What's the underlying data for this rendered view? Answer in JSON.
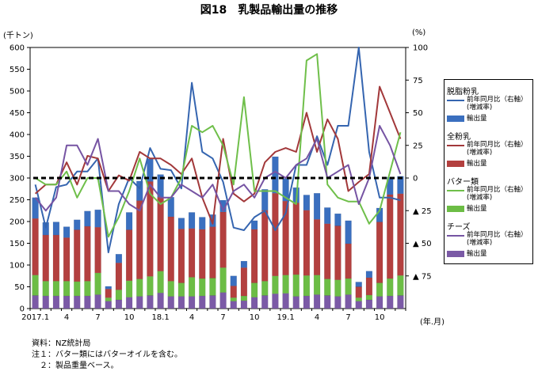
{
  "title": "図18　乳製品輸出量の推移",
  "left_unit": "(千トン)",
  "right_unit": "(%)",
  "x_unit": "(年.月)",
  "notes": [
    "資料：NZ統計局",
    "注１：バター類にはバターオイルを含む。",
    "　２：製品重量ベース。"
  ],
  "legend": {
    "groups": [
      {
        "name": "脱脂粉乳",
        "line_label": "前年同月比（右軸）\n(増減率)",
        "bar_label": "輸出量",
        "line_color": "#3565b0",
        "bar_color": "#3a6fbf"
      },
      {
        "name": "全粉乳",
        "line_label": "前年同月比（右軸）\n(増減率)",
        "bar_label": "輸出量",
        "line_color": "#a2383a",
        "bar_color": "#b3403f"
      },
      {
        "name": "バター類",
        "line_label": "前年同月比（右軸）\n(増減率)",
        "bar_label": "輸出量",
        "line_color": "#6fbf4a",
        "bar_color": "#6cbd45"
      },
      {
        "name": "チーズ",
        "line_label": "前年同月比（右軸）\n(増減率)",
        "bar_label": "輸出量",
        "line_color": "#7654a3",
        "bar_color": "#7b5aa6"
      }
    ]
  },
  "chart_data": {
    "type": "bar",
    "categories": [
      "2017.1",
      "2",
      "3",
      "4",
      "5",
      "6",
      "7",
      "8",
      "9",
      "10",
      "11",
      "12",
      "18.1",
      "2",
      "3",
      "4",
      "5",
      "6",
      "7",
      "8",
      "9",
      "10",
      "11",
      "12",
      "19.1",
      "2",
      "3",
      "4",
      "5",
      "6",
      "7",
      "8",
      "9",
      "10",
      "11",
      "12"
    ],
    "x_tick_labels": [
      "2017.1",
      "",
      "",
      "4",
      "",
      "",
      "7",
      "",
      "",
      "10",
      "",
      "",
      "18.1",
      "",
      "",
      "4",
      "",
      "",
      "7",
      "",
      "",
      "10",
      "",
      "",
      "19.1",
      "",
      "",
      "4",
      "",
      "",
      "7",
      "",
      "",
      "10",
      "",
      ""
    ],
    "ylim_left": [
      0,
      600
    ],
    "yticks_left": [
      "0",
      "50",
      "100",
      "150",
      "200",
      "250",
      "300",
      "350",
      "400",
      "450",
      "500",
      "550",
      "600"
    ],
    "ylim_right": [
      -100,
      100
    ],
    "yticks_right": [
      {
        "value": 100,
        "label": "100"
      },
      {
        "value": 75,
        "label": "75"
      },
      {
        "value": 50,
        "label": "50"
      },
      {
        "value": 25,
        "label": "25"
      },
      {
        "value": 0,
        "label": "0"
      },
      {
        "value": -25,
        "label": "▲ 25"
      },
      {
        "value": -50,
        "label": "▲ 50"
      },
      {
        "value": -75,
        "label": "▲ 75"
      }
    ],
    "bar_series": [
      {
        "name": "チーズ 輸出量",
        "values": [
          30,
          29,
          29,
          29,
          29,
          29,
          32,
          17,
          20,
          26,
          28,
          30,
          36,
          28,
          28,
          28,
          29,
          30,
          37,
          17,
          18,
          26,
          30,
          34,
          35,
          28,
          29,
          32,
          30,
          28,
          32,
          17,
          20,
          28,
          29,
          30
        ]
      },
      {
        "name": "バター類 輸出量",
        "values": [
          47,
          34,
          34,
          34,
          33,
          34,
          50,
          8,
          23,
          38,
          40,
          44,
          50,
          35,
          31,
          44,
          40,
          40,
          57,
          8,
          11,
          33,
          33,
          41,
          42,
          50,
          47,
          45,
          38,
          38,
          37,
          8,
          11,
          31,
          40,
          46
        ]
      },
      {
        "name": "全粉乳 輸出量",
        "values": [
          130,
          106,
          106,
          100,
          119,
          126,
          105,
          20,
          62,
          117,
          180,
          218,
          170,
          148,
          124,
          112,
          113,
          118,
          128,
          27,
          65,
          123,
          163,
          190,
          170,
          165,
          150,
          128,
          127,
          124,
          80,
          25,
          40,
          140,
          193,
          188
        ]
      },
      {
        "name": "脱脂粉乳 輸出量",
        "values": [
          48,
          29,
          30,
          25,
          23,
          35,
          40,
          6,
          20,
          40,
          45,
          52,
          52,
          45,
          25,
          37,
          28,
          28,
          27,
          23,
          15,
          20,
          48,
          84,
          52,
          35,
          35,
          60,
          37,
          28,
          53,
          11,
          15,
          32,
          40,
          40
        ]
      }
    ],
    "line_series": [
      {
        "name": "脱脂粉乳 前年同月比（増減率）",
        "values": [
          -5,
          -38,
          -7,
          -5,
          5,
          5,
          15,
          -57,
          -20,
          0,
          -8,
          23,
          7,
          6,
          -8,
          73,
          20,
          15,
          -3,
          -38,
          -40,
          -30,
          -25,
          -40,
          -27,
          10,
          10,
          32,
          10,
          40,
          40,
          100,
          20,
          -15,
          -15,
          -17
        ]
      },
      {
        "name": "全粉乳 前年同月比（増減率）",
        "values": [
          -12,
          -5,
          -5,
          12,
          -5,
          17,
          15,
          -10,
          2,
          -2,
          20,
          15,
          15,
          10,
          3,
          15,
          -15,
          -35,
          30,
          -12,
          -18,
          -12,
          12,
          20,
          23,
          20,
          50,
          20,
          45,
          30,
          -10,
          -3,
          3,
          70,
          50,
          30
        ]
      },
      {
        "name": "バター類 前年同月比（増減率）",
        "values": [
          0,
          -5,
          -5,
          5,
          -15,
          0,
          0,
          -45,
          -30,
          -10,
          15,
          -12,
          -20,
          -15,
          0,
          40,
          35,
          40,
          25,
          -5,
          62,
          -10,
          -10,
          -10,
          -15,
          -20,
          90,
          95,
          -5,
          -15,
          -18,
          -18,
          -35,
          -25,
          5,
          35
        ]
      },
      {
        "name": "チーズ 前年同月比（増減率）",
        "values": [
          -15,
          -25,
          -15,
          25,
          25,
          10,
          30,
          -10,
          -10,
          -20,
          -25,
          -5,
          -15,
          -15,
          -5,
          -10,
          -15,
          -5,
          -25,
          -10,
          -5,
          -15,
          0,
          5,
          0,
          10,
          15,
          30,
          0,
          5,
          10,
          -20,
          0,
          40,
          25,
          3
        ]
      }
    ],
    "reference_line": {
      "value": 0,
      "style": "dashed"
    }
  }
}
